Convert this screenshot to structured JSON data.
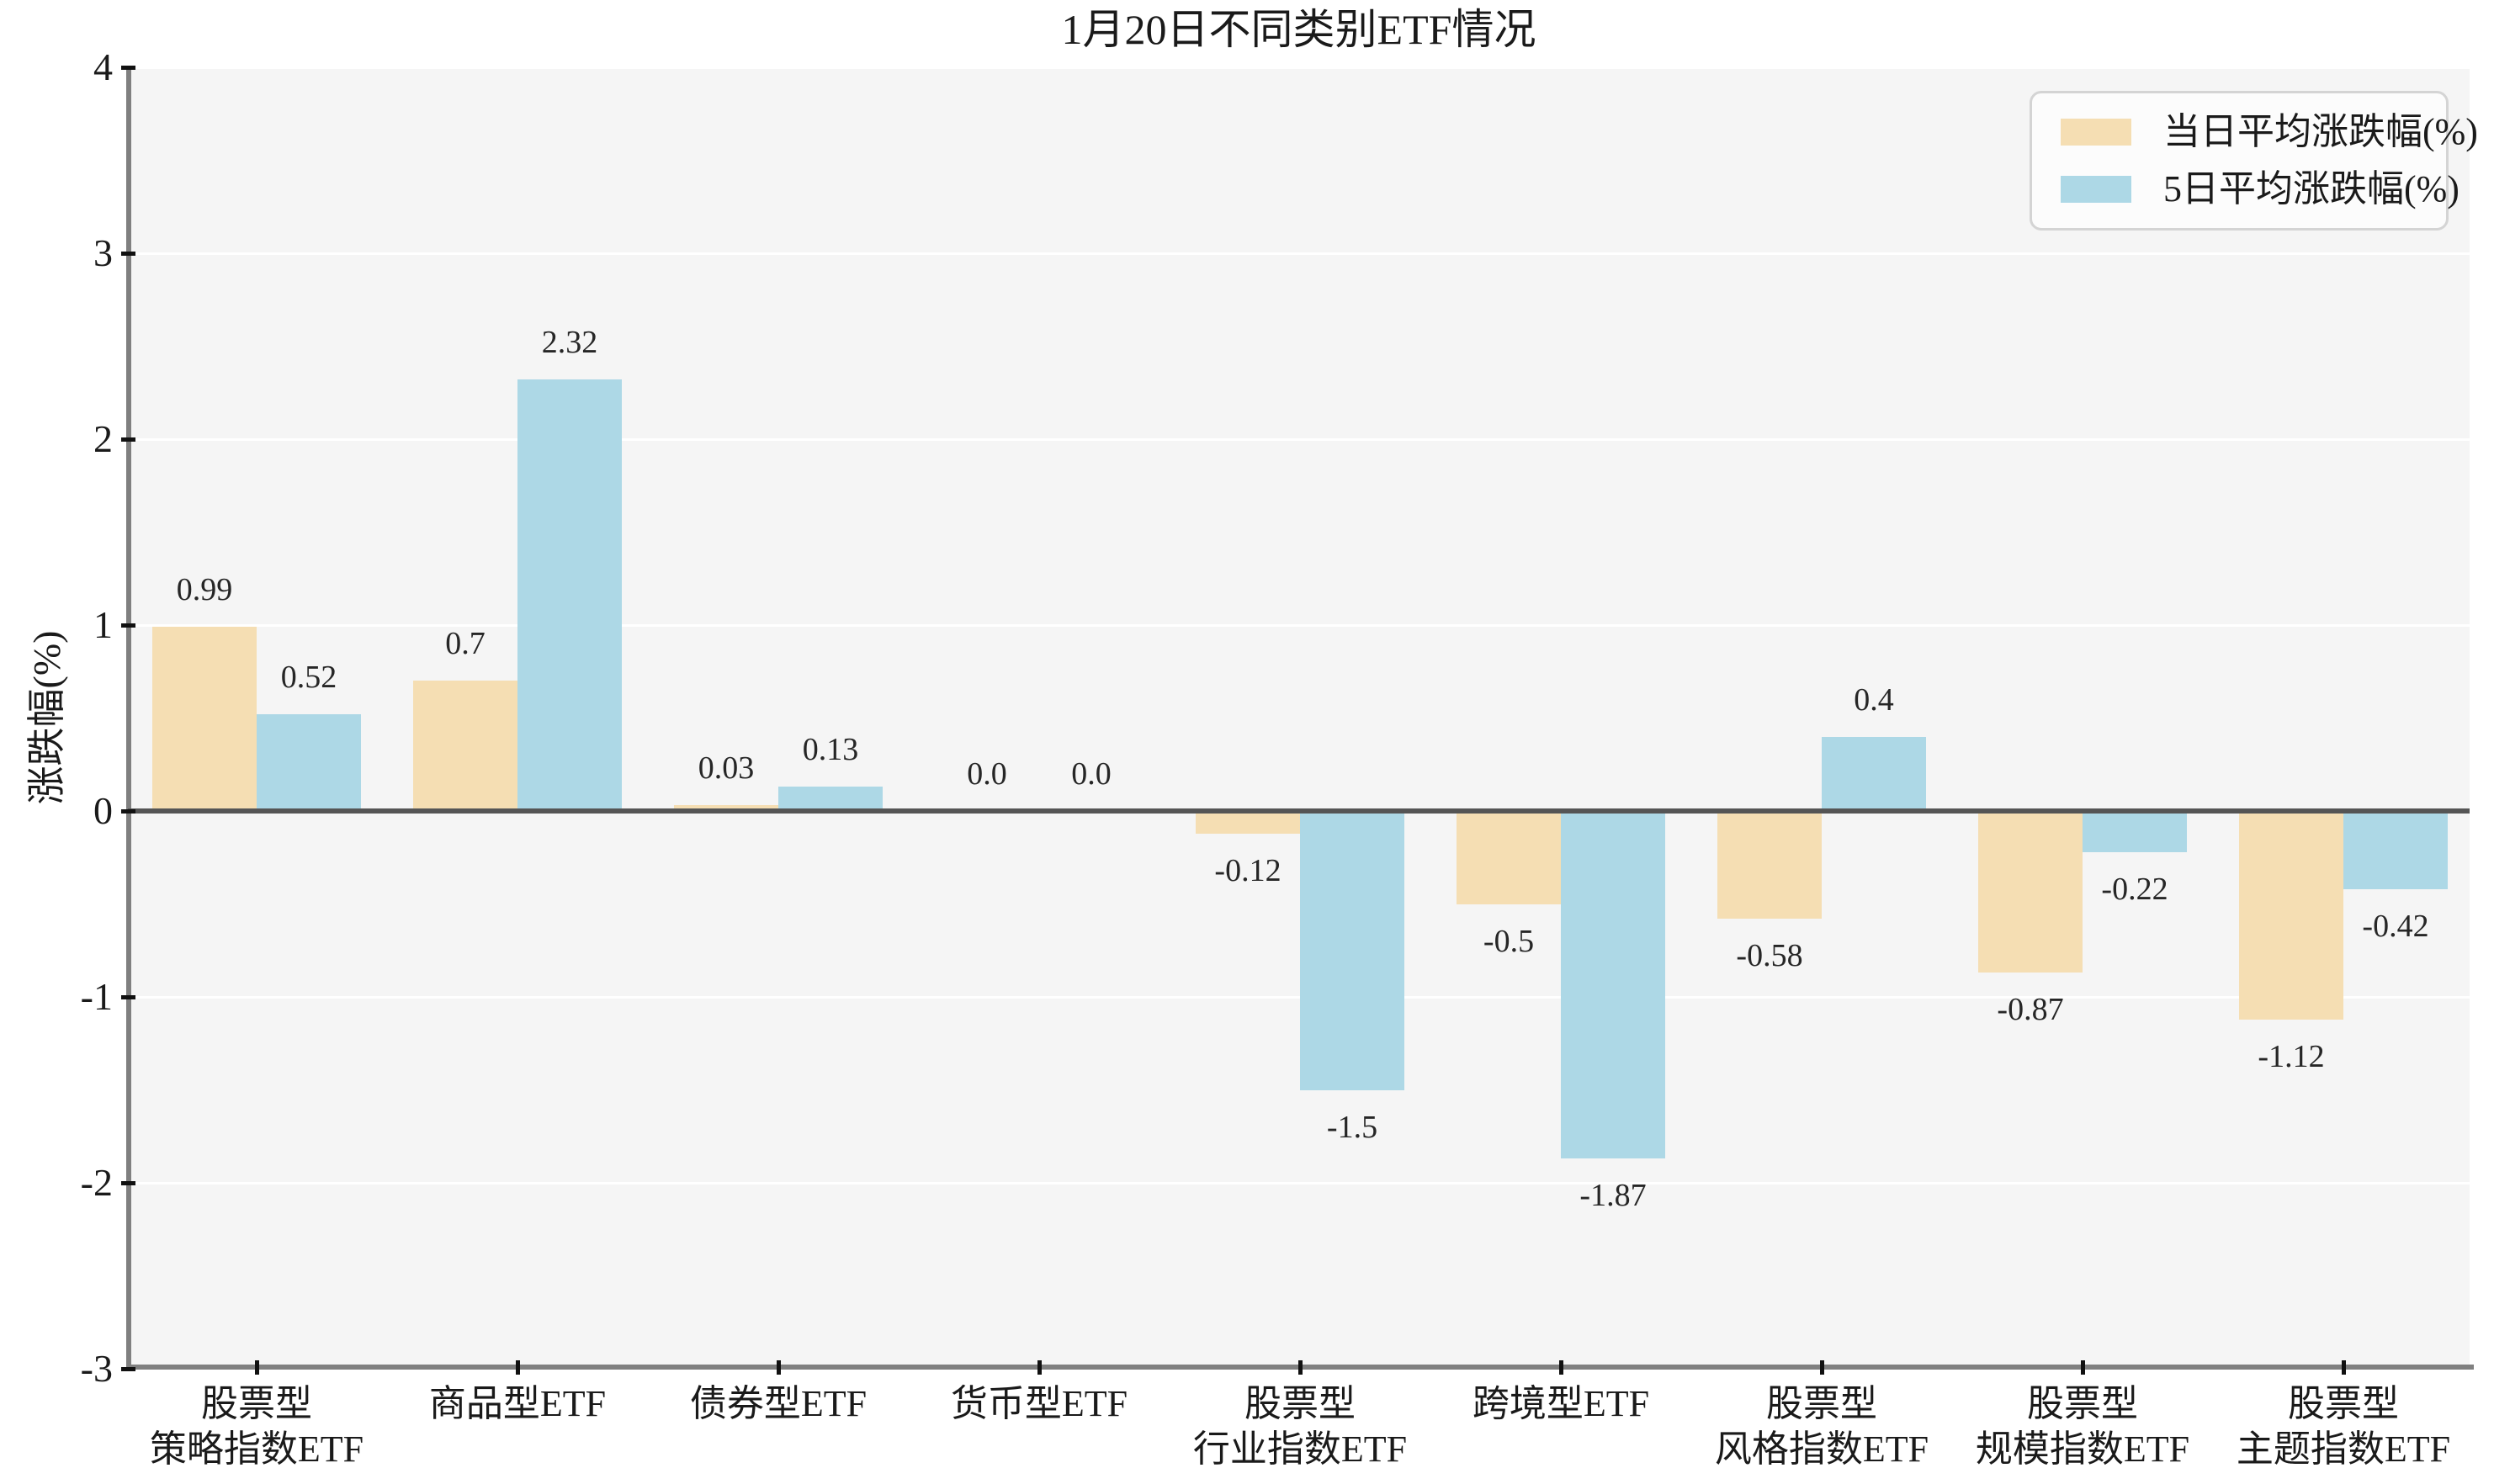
{
  "chart_data": {
    "type": "bar",
    "title": "1月20日不同类别ETF情况",
    "xlabel": "",
    "ylabel": "涨跌幅(%)",
    "categories": [
      "股票型\n策略指数ETF",
      "商品型ETF",
      "债券型ETF",
      "货币型ETF",
      "股票型\n行业指数ETF",
      "跨境型ETF",
      "股票型\n风格指数ETF",
      "股票型\n规模指数ETF",
      "股票型\n主题指数ETF"
    ],
    "series": [
      {
        "name": "当日平均涨跌幅(%)",
        "color": "#F5DEB3",
        "values": [
          0.99,
          0.7,
          0.03,
          0.0,
          -0.12,
          -0.5,
          -0.58,
          -0.87,
          -1.12
        ],
        "labels": [
          "0.99",
          "0.7",
          "0.03",
          "0.0",
          "-0.12",
          "-0.5",
          "-0.58",
          "-0.87",
          "-1.12"
        ]
      },
      {
        "name": "5日平均涨跌幅(%)",
        "color": "#ADD8E6",
        "values": [
          0.52,
          2.32,
          0.13,
          0.0,
          -1.5,
          -1.87,
          0.4,
          -0.22,
          -0.42
        ],
        "labels": [
          "0.52",
          "2.32",
          "0.13",
          "0.0",
          "-1.5",
          "-1.87",
          "0.4",
          "-0.22",
          "-0.42"
        ]
      }
    ],
    "ylim": [
      -3,
      4
    ],
    "yticks": [
      4,
      3,
      2,
      1,
      0,
      -1,
      -2,
      -3
    ],
    "grid": true,
    "grid_color": "#ffffff",
    "plot_background": "#f5f5f5",
    "zero_line_color": "#555555",
    "spine_color": "#808080",
    "legend_position": "upper right",
    "data_labels": true
  }
}
